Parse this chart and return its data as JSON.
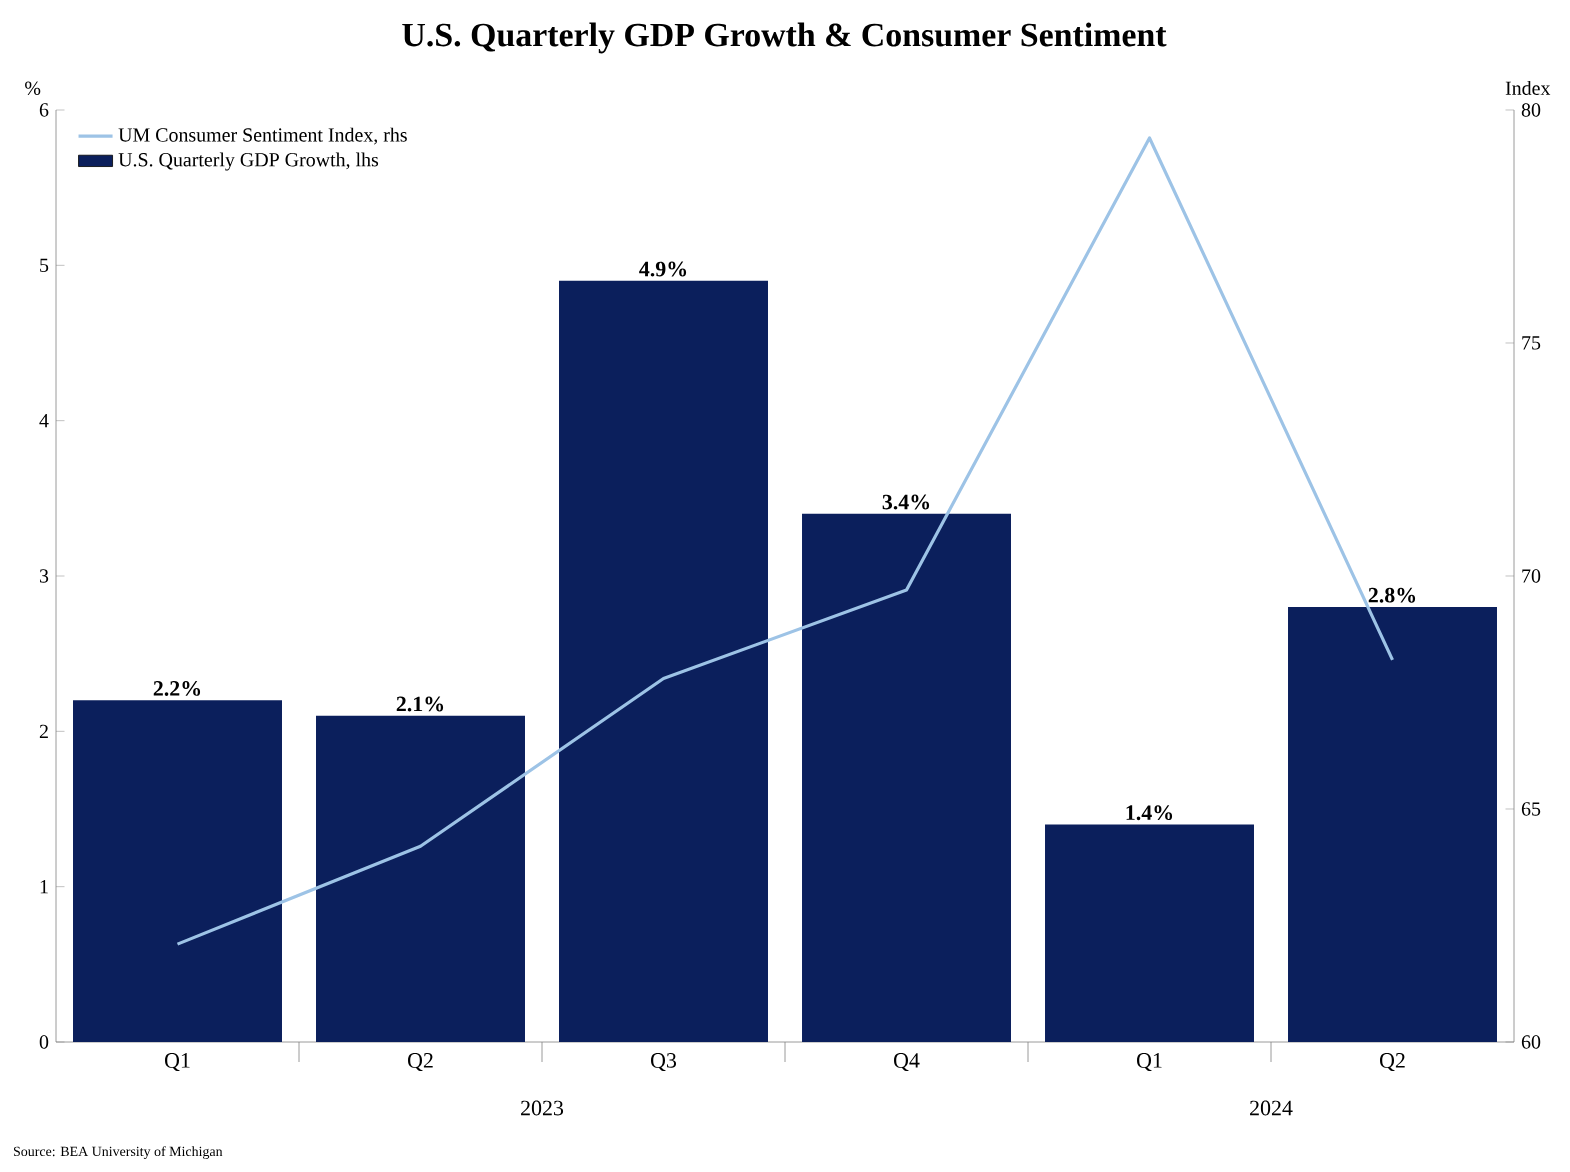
{
  "chart_data": {
    "type": "bar",
    "title": "U.S. Quarterly GDP Growth & Consumer Sentiment",
    "categories": [
      "Q1",
      "Q2",
      "Q3",
      "Q4",
      "Q1",
      "Q2"
    ],
    "series": [
      {
        "name": "U.S. Quarterly GDP Growth, lhs",
        "color": "#0b1f5c",
        "values": [
          2.2,
          2.1,
          4.9,
          3.4,
          1.4,
          2.8
        ],
        "value_labels": [
          "2.2%",
          "2.1%",
          "4.9%",
          "3.4%",
          "1.4%",
          "2.8%"
        ]
      },
      {
        "name": "UM Consumer Sentiment Index, rhs",
        "type": "line",
        "axis": "y2",
        "color": "#9dc3e6",
        "values": [
          62.1,
          64.2,
          67.8,
          69.7,
          79.4,
          68.2
        ]
      }
    ],
    "ylabel": "%",
    "y2label": "Index",
    "ylim": [
      0,
      6
    ],
    "yticks": [
      0,
      1,
      2,
      3,
      4,
      5,
      6
    ],
    "y2lim": [
      60,
      80
    ],
    "y2ticks": [
      60,
      65,
      70,
      75,
      80
    ],
    "legend": "top left",
    "annotations": [
      "2023",
      "2024",
      "Source: BEA University of Michigan"
    ]
  }
}
